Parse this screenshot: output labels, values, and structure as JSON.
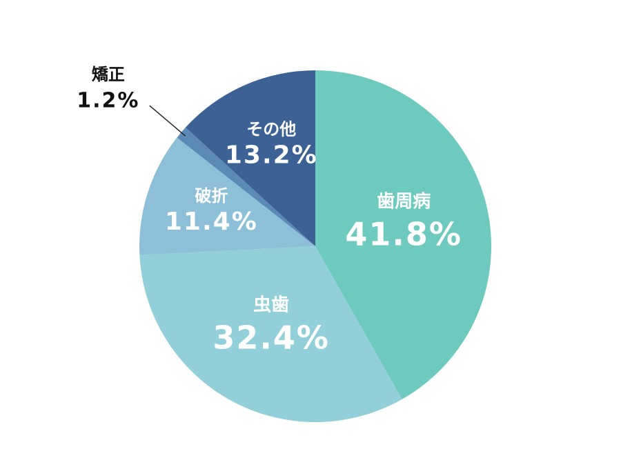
{
  "chart_data": {
    "type": "pie",
    "categories": [
      "歯周病",
      "虫歯",
      "破折",
      "矯正",
      "その他"
    ],
    "values": [
      41.8,
      32.4,
      11.4,
      1.2,
      13.2
    ],
    "value_labels": [
      "41.8%",
      "32.4%",
      "11.4%",
      "1.2%",
      "13.2%"
    ],
    "colors": [
      "#6ec9be",
      "#93cfd9",
      "#8dbfd9",
      "#5b8ab5",
      "#3b6195"
    ]
  }
}
